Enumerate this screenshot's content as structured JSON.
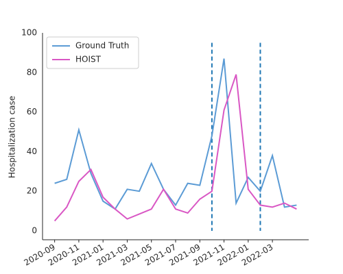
{
  "chart_data": {
    "type": "line",
    "ylabel": "Hospitalization case",
    "x": [
      "2020-09",
      "2020-10",
      "2020-11",
      "2020-12",
      "2021-01",
      "2021-02",
      "2021-03",
      "2021-04",
      "2021-05",
      "2021-06",
      "2021-07",
      "2021-08",
      "2021-09",
      "2021-10",
      "2021-11",
      "2021-12",
      "2022-01",
      "2022-02",
      "2022-03",
      "2022-04",
      "2022-05"
    ],
    "series": [
      {
        "name": "Ground Truth",
        "color": "#5b9bd5",
        "values": [
          24,
          26,
          51,
          29,
          15,
          11,
          21,
          20,
          34,
          21,
          13,
          24,
          23,
          48,
          87,
          14,
          27,
          20,
          38,
          12,
          13
        ]
      },
      {
        "name": "HOIST",
        "color": "#d957c4",
        "values": [
          5,
          12,
          25,
          31,
          17,
          11,
          6,
          8.5,
          11,
          21,
          11,
          9,
          16,
          20,
          61,
          79,
          21,
          13,
          12,
          14,
          11
        ]
      }
    ],
    "vlines": [
      "2021-10",
      "2022-02"
    ],
    "vline_color": "#1f77b4",
    "xlim": [
      "2020-08",
      "2022-06"
    ],
    "xticks": [
      "2020-09",
      "2020-11",
      "2021-01",
      "2021-03",
      "2021-05",
      "2021-07",
      "2021-09",
      "2021-11",
      "2022-01",
      "2022-03"
    ],
    "ylim": [
      -4.5,
      100
    ],
    "yticks": [
      0,
      20,
      40,
      60,
      80,
      100
    ],
    "legend": "upper left"
  }
}
